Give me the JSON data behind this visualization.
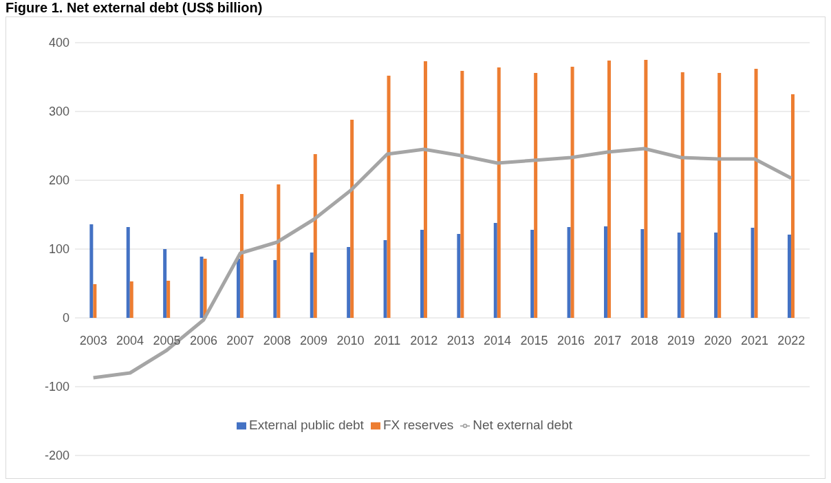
{
  "chart_data": {
    "type": "bar",
    "title": "Figure 1. Net external debt (US$ billion)",
    "categories": [
      "2003",
      "2004",
      "2005",
      "2006",
      "2007",
      "2008",
      "2009",
      "2010",
      "2011",
      "2012",
      "2013",
      "2014",
      "2015",
      "2016",
      "2017",
      "2018",
      "2019",
      "2020",
      "2021",
      "2022"
    ],
    "series": [
      {
        "name": "External public debt",
        "color": "#4472c4",
        "values": [
          136,
          132,
          100,
          89,
          86,
          84,
          95,
          103,
          113,
          128,
          122,
          138,
          128,
          132,
          133,
          129,
          124,
          124,
          131,
          121
        ]
      },
      {
        "name": "FX reserves",
        "color": "#ed7d31",
        "values": [
          49,
          53,
          54,
          86,
          180,
          194,
          238,
          288,
          352,
          373,
          359,
          364,
          356,
          365,
          374,
          375,
          357,
          356,
          362,
          325
        ]
      },
      {
        "name": "Net external debt",
        "type": "line",
        "color": "#a5a5a5",
        "values": [
          -87,
          -80,
          -47,
          -3,
          94,
          110,
          143,
          185,
          238,
          245,
          236,
          225,
          229,
          233,
          241,
          246,
          233,
          231,
          231,
          203
        ]
      }
    ],
    "ylim": [
      -200,
      400
    ],
    "yticks": [
      -200,
      -100,
      0,
      100,
      200,
      300,
      400
    ],
    "grid": "y",
    "legend": "bottom",
    "marker": "none"
  }
}
